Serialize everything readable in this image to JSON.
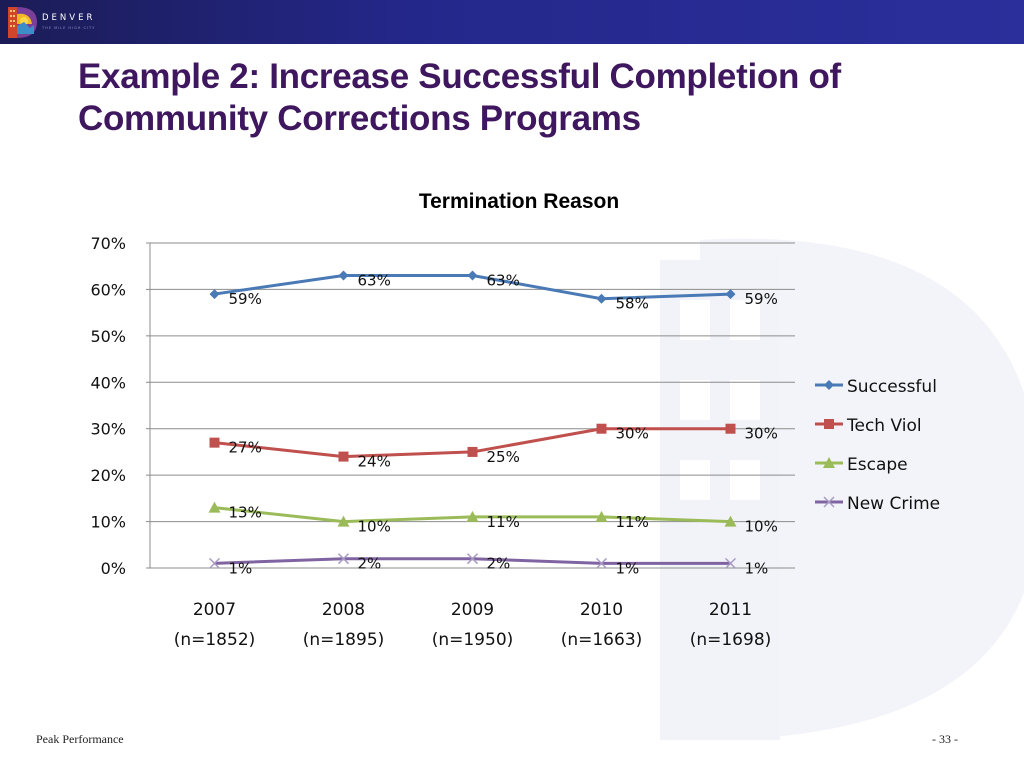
{
  "header": {
    "logo_name": "DENVER",
    "logo_tagline": "THE MILE HIGH CITY"
  },
  "slide": {
    "title": "Example 2: Increase Successful Completion of Community Corrections Programs",
    "footer_left": "Peak Performance",
    "footer_right": "- 33 -"
  },
  "chart_data": {
    "type": "line",
    "title": "Termination Reason",
    "xlabel": "",
    "ylabel": "",
    "categories": [
      "2007",
      "2008",
      "2009",
      "2010",
      "2011"
    ],
    "category_sublabels": [
      "(n=1852)",
      "(n=1895)",
      "(n=1950)",
      "(n=1663)",
      "(n=1698)"
    ],
    "ylim": [
      0,
      70
    ],
    "yticks": [
      0,
      10,
      20,
      30,
      40,
      50,
      60,
      70
    ],
    "ytick_labels": [
      "0%",
      "10%",
      "20%",
      "30%",
      "40%",
      "50%",
      "60%",
      "70%"
    ],
    "grid": true,
    "legend_position": "right",
    "series": [
      {
        "name": "Successful",
        "values": [
          59,
          63,
          63,
          58,
          59
        ],
        "labels": [
          "59%",
          "63%",
          "63%",
          "58%",
          "59%"
        ],
        "color": "#4a7ab5",
        "marker": "diamond"
      },
      {
        "name": "Tech Viol",
        "values": [
          27,
          24,
          25,
          30,
          30
        ],
        "labels": [
          "27%",
          "24%",
          "25%",
          "30%",
          "30%"
        ],
        "color": "#c0504d",
        "marker": "square"
      },
      {
        "name": "Escape",
        "values": [
          13,
          10,
          11,
          11,
          10
        ],
        "labels": [
          "13%",
          "10%",
          "11%",
          "11%",
          "10%"
        ],
        "color": "#9bbb59",
        "marker": "triangle"
      },
      {
        "name": "New Crime",
        "values": [
          1,
          2,
          2,
          1,
          1
        ],
        "labels": [
          "1%",
          "2%",
          "2%",
          "1%",
          "1%"
        ],
        "color": "#8064a2",
        "marker": "x"
      }
    ]
  }
}
